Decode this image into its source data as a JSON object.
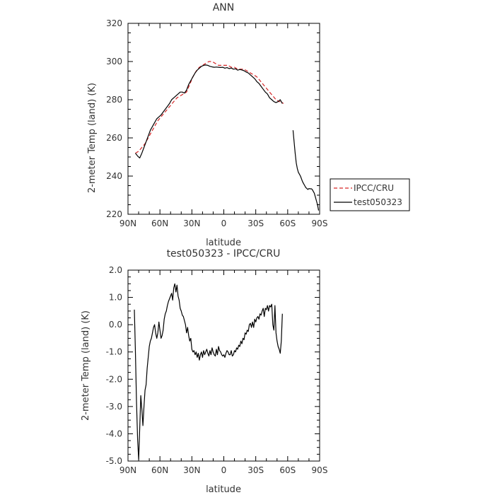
{
  "chart_data": [
    {
      "type": "line",
      "title": "ANN",
      "xlabel": "latitude",
      "ylabel": "2-meter Temp (land) (K)",
      "xlim": [
        90,
        -90
      ],
      "ylim": [
        220,
        320
      ],
      "x_tick_values": [
        90,
        60,
        30,
        0,
        -30,
        -60,
        -90
      ],
      "x_tick_labels": [
        "90N",
        "60N",
        "30N",
        "0",
        "30S",
        "60S",
        "90S"
      ],
      "y_tick_values": [
        220,
        240,
        260,
        280,
        300,
        320
      ],
      "y_tick_labels": [
        "220",
        "240",
        "260",
        "280",
        "300",
        "320"
      ],
      "legend": [
        "IPCC/CRU",
        "test050323"
      ],
      "legend_position": "outside-right-bottom",
      "series": [
        {
          "name": "IPCC/CRU",
          "color": "#d62728",
          "dash": "dashed",
          "x": [
            83,
            80,
            77,
            74,
            71,
            68,
            65,
            62,
            59,
            56,
            53,
            50,
            47,
            44,
            41,
            38,
            35,
            32,
            29,
            26,
            23,
            20,
            17,
            14,
            11,
            8,
            5,
            2,
            -1,
            -4,
            -7,
            -10,
            -13,
            -16,
            -19,
            -22,
            -25,
            -28,
            -31,
            -34,
            -37,
            -40,
            -43,
            -46,
            -49,
            -52,
            -54,
            -56
          ],
          "y": [
            252,
            253,
            255,
            257,
            260,
            263,
            266,
            269,
            271,
            273,
            275,
            277,
            279,
            281,
            282,
            283,
            284,
            288,
            292,
            295,
            297,
            298,
            299,
            300,
            300,
            299,
            298,
            298,
            298,
            298,
            297,
            297,
            296,
            296,
            296,
            295,
            294,
            293,
            292,
            290,
            288,
            286,
            284,
            282,
            280,
            279,
            279,
            278
          ]
        },
        {
          "name": "test050323",
          "color": "#000000",
          "dash": "solid",
          "x": [
            83,
            81,
            79,
            77,
            75,
            73,
            71,
            69,
            67,
            65,
            63,
            61,
            59,
            57,
            55,
            53,
            51,
            49,
            47,
            45,
            43,
            41,
            39,
            37,
            35,
            33,
            31,
            29,
            27,
            25,
            23,
            21,
            19,
            17,
            15,
            13,
            11,
            9,
            7,
            5,
            3,
            1,
            -1,
            -3,
            -5,
            -7,
            -9,
            -11,
            -13,
            -15,
            -17,
            -19,
            -21,
            -23,
            -25,
            -27,
            -29,
            -31,
            -33,
            -35,
            -37,
            -39,
            -41,
            -43,
            -45,
            -47,
            -49,
            -51,
            -53,
            -55
          ],
          "y": [
            252,
            250.5,
            249.5,
            252,
            255,
            258,
            261,
            264,
            266,
            268,
            270,
            271,
            272,
            273.5,
            275,
            276.5,
            278,
            280,
            281,
            282,
            283,
            284,
            284,
            283.5,
            285,
            288,
            290,
            292,
            294,
            295.5,
            296.5,
            297.5,
            298,
            298.2,
            298,
            297.5,
            297.2,
            297,
            297.1,
            297,
            296.9,
            297,
            296.5,
            296.8,
            296.3,
            296.6,
            296,
            296.2,
            295.5,
            295.8,
            295.6,
            295.2,
            294.5,
            294,
            293,
            292,
            291,
            289.5,
            288.5,
            287,
            285.5,
            284,
            283,
            281,
            280,
            279,
            278.5,
            279,
            280,
            278
          ]
        },
        {
          "name": "test050323",
          "color": "#000000",
          "dash": "solid",
          "x": [
            -65,
            -66,
            -67,
            -68,
            -69,
            -70,
            -71,
            -72,
            -73,
            -74,
            -75,
            -76,
            -77,
            -78,
            -79,
            -80,
            -81,
            -82,
            -83,
            -84,
            -85,
            -86,
            -87,
            -88,
            -89
          ],
          "y": [
            264,
            258,
            252,
            247,
            244,
            242,
            241,
            240,
            238.5,
            237,
            236,
            235,
            234,
            233.5,
            233,
            233.5,
            233.3,
            233.4,
            233,
            232,
            231,
            229,
            227,
            225,
            222
          ]
        }
      ]
    },
    {
      "type": "line",
      "title": "test050323 - IPCC/CRU",
      "xlabel": "latitude",
      "ylabel": "2-meter Temp (land) (K)",
      "xlim": [
        90,
        -90
      ],
      "ylim": [
        -5.0,
        2.0
      ],
      "x_tick_values": [
        90,
        60,
        30,
        0,
        -30,
        -60,
        -90
      ],
      "x_tick_labels": [
        "90N",
        "60N",
        "30N",
        "0",
        "30S",
        "60S",
        "90S"
      ],
      "y_tick_values": [
        -5,
        -4,
        -3,
        -2,
        -1,
        0,
        1,
        2
      ],
      "y_tick_labels": [
        "-5.0",
        "-4.0",
        "-3.0",
        "-2.0",
        "-1.0",
        "0.0",
        "1.0",
        "2.0"
      ],
      "series": [
        {
          "name": "test050323 - IPCC/CRU",
          "color": "#000000",
          "dash": "solid",
          "x": [
            84,
            83,
            82,
            81,
            80,
            79,
            78,
            77,
            76,
            75,
            74,
            73,
            72,
            71,
            70,
            69,
            68,
            67,
            66,
            65,
            64,
            63,
            62,
            61,
            60,
            59,
            58,
            57,
            56,
            55,
            54,
            53,
            52,
            51,
            50,
            49,
            48,
            47,
            46,
            45,
            44,
            43,
            42,
            41,
            40,
            39,
            38,
            37,
            36,
            35,
            34,
            33,
            32,
            31,
            30,
            29,
            28,
            27,
            26,
            25,
            24,
            23,
            22,
            21,
            20,
            19,
            18,
            17,
            16,
            15,
            14,
            13,
            12,
            11,
            10,
            9,
            8,
            7,
            6,
            5,
            4,
            3,
            2,
            1,
            0,
            -1,
            -2,
            -3,
            -4,
            -5,
            -6,
            -7,
            -8,
            -9,
            -10,
            -11,
            -12,
            -13,
            -14,
            -15,
            -16,
            -17,
            -18,
            -19,
            -20,
            -21,
            -22,
            -23,
            -24,
            -25,
            -26,
            -27,
            -28,
            -29,
            -30,
            -31,
            -32,
            -33,
            -34,
            -35,
            -36,
            -37,
            -38,
            -39,
            -40,
            -41,
            -42,
            -43,
            -44,
            -45,
            -46,
            -47,
            -48,
            -49,
            -50,
            -51,
            -52,
            -53,
            -54,
            -55
          ],
          "y": [
            0.55,
            -1.0,
            -2.8,
            -4.2,
            -4.95,
            -3.8,
            -2.6,
            -3.1,
            -3.7,
            -3.0,
            -2.4,
            -2.2,
            -1.6,
            -1.2,
            -0.8,
            -0.6,
            -0.5,
            -0.3,
            -0.1,
            0.0,
            -0.3,
            -0.5,
            -0.3,
            0.1,
            -0.2,
            -0.5,
            -0.4,
            -0.2,
            0.2,
            0.4,
            0.5,
            0.7,
            0.85,
            0.95,
            1.05,
            1.15,
            0.9,
            1.35,
            1.5,
            1.2,
            1.45,
            1.05,
            0.9,
            0.6,
            0.5,
            0.35,
            0.3,
            0.15,
            0.0,
            -0.3,
            -0.1,
            -0.4,
            -0.6,
            -0.5,
            -0.9,
            -1.0,
            -0.95,
            -1.1,
            -1.0,
            -1.2,
            -1.05,
            -1.3,
            -1.1,
            -1.0,
            -1.2,
            -0.95,
            -1.1,
            -1.0,
            -0.9,
            -1.05,
            -1.15,
            -0.95,
            -1.1,
            -0.85,
            -1.0,
            -1.1,
            -1.15,
            -0.9,
            -1.1,
            -0.8,
            -0.95,
            -1.0,
            -1.1,
            -1.15,
            -1.1,
            -1.2,
            -1.05,
            -0.95,
            -1.0,
            -1.1,
            -1.1,
            -0.95,
            -1.15,
            -1.1,
            -0.95,
            -1.0,
            -0.85,
            -0.9,
            -0.75,
            -0.8,
            -0.6,
            -0.7,
            -0.5,
            -0.55,
            -0.3,
            -0.35,
            -0.2,
            -0.25,
            0.0,
            0.05,
            -0.1,
            0.1,
            -0.1,
            0.2,
            0.1,
            0.25,
            0.3,
            0.2,
            0.4,
            0.35,
            0.5,
            0.6,
            0.3,
            0.6,
            0.55,
            0.7,
            0.5,
            0.7,
            0.65,
            0.75,
            0.0,
            -0.2,
            0.7,
            -0.3,
            -0.6,
            -0.8,
            -0.9,
            -1.05,
            -0.6,
            0.4
          ]
        }
      ]
    }
  ]
}
